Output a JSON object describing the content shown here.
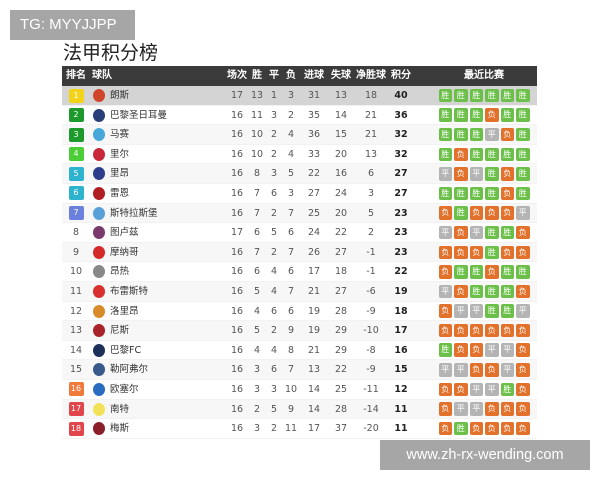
{
  "overlay_top": "TG: MYYJJPP",
  "overlay_bottom": "www.zh-rx-wending.com",
  "title": "法甲积分榜",
  "headers": {
    "rank": "排名",
    "team": "球队",
    "played": "场次",
    "win": "胜",
    "draw": "平",
    "loss": "负",
    "gf": "进球",
    "ga": "失球",
    "gd": "净胜球",
    "pts": "积分",
    "form": "最近比赛"
  },
  "colors": {
    "win": "#6cc04a",
    "loss": "#e2712c",
    "draw": "#b4b4b4",
    "header": "#3b3b3b"
  },
  "rows": [
    {
      "rank": "1",
      "team": "朗斯",
      "p": "17",
      "w": "13",
      "d": "1",
      "l": "3",
      "gf": "31",
      "ga": "13",
      "gd": "18",
      "pts": "40",
      "badge": "#f3d21a",
      "logo": "#d0462a",
      "form": [
        "胜",
        "胜",
        "胜",
        "胜",
        "胜",
        "胜"
      ]
    },
    {
      "rank": "2",
      "team": "巴黎圣日耳曼",
      "p": "16",
      "w": "11",
      "d": "3",
      "l": "2",
      "gf": "35",
      "ga": "14",
      "gd": "21",
      "pts": "36",
      "badge": "#1e9a2c",
      "logo": "#2a3f7a",
      "form": [
        "胜",
        "胜",
        "胜",
        "负",
        "胜",
        "胜"
      ]
    },
    {
      "rank": "3",
      "team": "马赛",
      "p": "16",
      "w": "10",
      "d": "2",
      "l": "4",
      "gf": "36",
      "ga": "15",
      "gd": "21",
      "pts": "32",
      "badge": "#1e9a2c",
      "logo": "#47a7d8",
      "form": [
        "胜",
        "胜",
        "胜",
        "平",
        "负",
        "胜"
      ]
    },
    {
      "rank": "4",
      "team": "里尔",
      "p": "16",
      "w": "10",
      "d": "2",
      "l": "4",
      "gf": "33",
      "ga": "20",
      "gd": "13",
      "pts": "32",
      "badge": "#4ccf36",
      "logo": "#c8283a",
      "form": [
        "胜",
        "负",
        "胜",
        "胜",
        "胜",
        "胜"
      ]
    },
    {
      "rank": "5",
      "team": "里昂",
      "p": "16",
      "w": "8",
      "d": "3",
      "l": "5",
      "gf": "22",
      "ga": "16",
      "gd": "6",
      "pts": "27",
      "badge": "#2eb3cf",
      "logo": "#2d3e8c",
      "form": [
        "平",
        "负",
        "平",
        "胜",
        "负",
        "胜"
      ]
    },
    {
      "rank": "6",
      "team": "雷恩",
      "p": "16",
      "w": "7",
      "d": "6",
      "l": "3",
      "gf": "27",
      "ga": "24",
      "gd": "3",
      "pts": "27",
      "badge": "#2eb3cf",
      "logo": "#b01e24",
      "form": [
        "胜",
        "胜",
        "胜",
        "胜",
        "负",
        "胜"
      ]
    },
    {
      "rank": "7",
      "team": "斯特拉斯堡",
      "p": "16",
      "w": "7",
      "d": "2",
      "l": "7",
      "gf": "25",
      "ga": "20",
      "gd": "5",
      "pts": "23",
      "badge": "#6b7fdc",
      "logo": "#5aa0d8",
      "form": [
        "负",
        "胜",
        "负",
        "负",
        "负",
        "平"
      ]
    },
    {
      "rank": "8",
      "team": "图卢兹",
      "p": "17",
      "w": "6",
      "d": "5",
      "l": "6",
      "gf": "24",
      "ga": "22",
      "gd": "2",
      "pts": "23",
      "badge": "",
      "logo": "#7a3a6e",
      "form": [
        "平",
        "负",
        "平",
        "胜",
        "胜",
        "负"
      ]
    },
    {
      "rank": "9",
      "team": "摩纳哥",
      "p": "16",
      "w": "7",
      "d": "2",
      "l": "7",
      "gf": "26",
      "ga": "27",
      "gd": "-1",
      "pts": "23",
      "badge": "",
      "logo": "#d42a2a",
      "form": [
        "负",
        "负",
        "负",
        "胜",
        "负",
        "负"
      ]
    },
    {
      "rank": "10",
      "team": "昂热",
      "p": "16",
      "w": "6",
      "d": "4",
      "l": "6",
      "gf": "17",
      "ga": "18",
      "gd": "-1",
      "pts": "22",
      "badge": "",
      "logo": "#888888",
      "form": [
        "负",
        "胜",
        "胜",
        "负",
        "胜",
        "胜"
      ]
    },
    {
      "rank": "11",
      "team": "布雷斯特",
      "p": "16",
      "w": "5",
      "d": "4",
      "l": "7",
      "gf": "21",
      "ga": "27",
      "gd": "-6",
      "pts": "19",
      "badge": "",
      "logo": "#d8302e",
      "form": [
        "平",
        "负",
        "胜",
        "胜",
        "胜",
        "负"
      ]
    },
    {
      "rank": "12",
      "team": "洛里昂",
      "p": "16",
      "w": "4",
      "d": "6",
      "l": "6",
      "gf": "19",
      "ga": "28",
      "gd": "-9",
      "pts": "18",
      "badge": "",
      "logo": "#d98a2a",
      "form": [
        "负",
        "平",
        "平",
        "胜",
        "胜",
        "平"
      ]
    },
    {
      "rank": "13",
      "team": "尼斯",
      "p": "16",
      "w": "5",
      "d": "2",
      "l": "9",
      "gf": "19",
      "ga": "29",
      "gd": "-10",
      "pts": "17",
      "badge": "",
      "logo": "#a8242a",
      "form": [
        "负",
        "负",
        "负",
        "负",
        "负",
        "负"
      ]
    },
    {
      "rank": "14",
      "team": "巴黎FC",
      "p": "16",
      "w": "4",
      "d": "4",
      "l": "8",
      "gf": "21",
      "ga": "29",
      "gd": "-8",
      "pts": "16",
      "badge": "",
      "logo": "#1e2f5a",
      "form": [
        "胜",
        "负",
        "负",
        "平",
        "平",
        "负"
      ]
    },
    {
      "rank": "15",
      "team": "勒阿弗尔",
      "p": "16",
      "w": "3",
      "d": "6",
      "l": "7",
      "gf": "13",
      "ga": "22",
      "gd": "-9",
      "pts": "15",
      "badge": "",
      "logo": "#3a5a8c",
      "form": [
        "平",
        "平",
        "负",
        "负",
        "平",
        "负"
      ]
    },
    {
      "rank": "16",
      "team": "欧塞尔",
      "p": "16",
      "w": "3",
      "d": "3",
      "l": "10",
      "gf": "14",
      "ga": "25",
      "gd": "-11",
      "pts": "12",
      "badge": "#f07a3a",
      "logo": "#2a6cc0",
      "form": [
        "负",
        "负",
        "平",
        "平",
        "胜",
        "负"
      ]
    },
    {
      "rank": "17",
      "team": "南特",
      "p": "16",
      "w": "2",
      "d": "5",
      "l": "9",
      "gf": "14",
      "ga": "28",
      "gd": "-14",
      "pts": "11",
      "badge": "#e0464b",
      "logo": "#f2e25a",
      "form": [
        "负",
        "平",
        "平",
        "负",
        "负",
        "负"
      ]
    },
    {
      "rank": "18",
      "team": "梅斯",
      "p": "16",
      "w": "3",
      "d": "2",
      "l": "11",
      "gf": "17",
      "ga": "37",
      "gd": "-20",
      "pts": "11",
      "badge": "#e0464b",
      "logo": "#8a1e2a",
      "form": [
        "负",
        "胜",
        "负",
        "负",
        "负",
        "负"
      ]
    }
  ]
}
